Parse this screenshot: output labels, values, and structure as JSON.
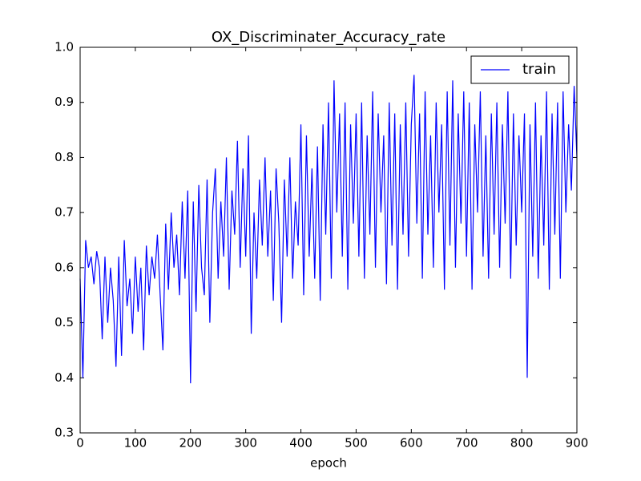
{
  "chart_data": {
    "type": "line",
    "title": "OX_Discriminater_Accuracy_rate",
    "xlabel": "epoch",
    "x": [
      0,
      5,
      10,
      15,
      20,
      25,
      30,
      35,
      40,
      45,
      50,
      55,
      60,
      65,
      70,
      75,
      80,
      85,
      90,
      95,
      100,
      105,
      110,
      115,
      120,
      125,
      130,
      135,
      140,
      145,
      150,
      155,
      160,
      165,
      170,
      175,
      180,
      185,
      190,
      195,
      200,
      205,
      210,
      215,
      220,
      225,
      230,
      235,
      240,
      245,
      250,
      255,
      260,
      265,
      270,
      275,
      280,
      285,
      290,
      295,
      300,
      305,
      310,
      315,
      320,
      325,
      330,
      335,
      340,
      345,
      350,
      355,
      360,
      365,
      370,
      375,
      380,
      385,
      390,
      395,
      400,
      405,
      410,
      415,
      420,
      425,
      430,
      435,
      440,
      445,
      450,
      455,
      460,
      465,
      470,
      475,
      480,
      485,
      490,
      495,
      500,
      505,
      510,
      515,
      520,
      525,
      530,
      535,
      540,
      545,
      550,
      555,
      560,
      565,
      570,
      575,
      580,
      585,
      590,
      595,
      600,
      605,
      610,
      615,
      620,
      625,
      630,
      635,
      640,
      645,
      650,
      655,
      660,
      665,
      670,
      675,
      680,
      685,
      690,
      695,
      700,
      705,
      710,
      715,
      720,
      725,
      730,
      735,
      740,
      745,
      750,
      755,
      760,
      765,
      770,
      775,
      780,
      785,
      790,
      795,
      800,
      805,
      810,
      815,
      820,
      825,
      830,
      835,
      840,
      845,
      850,
      855,
      860,
      865,
      870,
      875,
      880,
      885,
      890,
      895,
      900
    ],
    "series": [
      {
        "name": "train",
        "color": "#0000ff",
        "values": [
          0.58,
          0.4,
          0.65,
          0.6,
          0.62,
          0.57,
          0.63,
          0.6,
          0.47,
          0.62,
          0.5,
          0.6,
          0.54,
          0.42,
          0.62,
          0.44,
          0.65,
          0.53,
          0.58,
          0.48,
          0.62,
          0.52,
          0.6,
          0.45,
          0.64,
          0.55,
          0.62,
          0.58,
          0.66,
          0.55,
          0.45,
          0.68,
          0.56,
          0.7,
          0.6,
          0.66,
          0.55,
          0.72,
          0.58,
          0.74,
          0.39,
          0.72,
          0.52,
          0.75,
          0.6,
          0.55,
          0.76,
          0.5,
          0.7,
          0.78,
          0.58,
          0.72,
          0.62,
          0.8,
          0.56,
          0.74,
          0.66,
          0.83,
          0.6,
          0.78,
          0.62,
          0.84,
          0.48,
          0.7,
          0.58,
          0.76,
          0.64,
          0.8,
          0.62,
          0.74,
          0.54,
          0.78,
          0.68,
          0.5,
          0.76,
          0.62,
          0.8,
          0.58,
          0.72,
          0.64,
          0.86,
          0.55,
          0.84,
          0.62,
          0.78,
          0.58,
          0.82,
          0.54,
          0.86,
          0.66,
          0.9,
          0.58,
          0.94,
          0.7,
          0.88,
          0.62,
          0.9,
          0.56,
          0.86,
          0.68,
          0.88,
          0.62,
          0.9,
          0.58,
          0.84,
          0.66,
          0.92,
          0.6,
          0.88,
          0.7,
          0.84,
          0.57,
          0.9,
          0.64,
          0.88,
          0.56,
          0.86,
          0.66,
          0.9,
          0.62,
          0.86,
          0.95,
          0.68,
          0.88,
          0.58,
          0.92,
          0.66,
          0.84,
          0.6,
          0.9,
          0.7,
          0.86,
          0.56,
          0.92,
          0.64,
          0.94,
          0.6,
          0.88,
          0.68,
          0.92,
          0.62,
          0.9,
          0.56,
          0.86,
          0.7,
          0.92,
          0.62,
          0.84,
          0.58,
          0.88,
          0.66,
          0.9,
          0.6,
          0.86,
          0.68,
          0.92,
          0.58,
          0.88,
          0.64,
          0.84,
          0.7,
          0.88,
          0.4,
          0.86,
          0.62,
          0.9,
          0.58,
          0.84,
          0.64,
          0.92,
          0.56,
          0.88,
          0.66,
          0.9,
          0.58,
          0.92,
          0.7,
          0.86,
          0.74,
          0.93,
          0.8
        ]
      }
    ],
    "xlim": [
      0,
      900
    ],
    "xticks": [
      0,
      100,
      200,
      300,
      400,
      500,
      600,
      700,
      800,
      900
    ],
    "ylim": [
      0.3,
      1.0
    ],
    "yticks": [
      0.3,
      0.4,
      0.5,
      0.6,
      0.7,
      0.8,
      0.9,
      {
        "value": 1.0,
        "label": "1.0"
      }
    ],
    "legend": "upper right"
  }
}
